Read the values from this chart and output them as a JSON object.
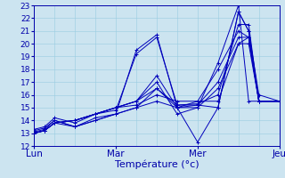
{
  "title": "Température (°c)",
  "x_ticks": [
    0,
    24,
    48,
    72
  ],
  "x_tick_labels": [
    "Lun",
    "Mar",
    "Mer",
    "Jeu"
  ],
  "ylim": [
    12,
    23
  ],
  "xlim": [
    0,
    72
  ],
  "yticks": [
    12,
    13,
    14,
    15,
    16,
    17,
    18,
    19,
    20,
    21,
    22,
    23
  ],
  "background_color": "#cce4f0",
  "grid_color": "#99cce0",
  "line_color": "#0000bb",
  "series": [
    [
      0,
      13.3,
      3,
      13.5,
      6,
      14.2,
      12,
      13.8,
      18,
      14.5,
      24,
      14.8,
      30,
      19.2,
      36,
      20.5,
      42,
      15.2,
      48,
      15.2,
      54,
      15.0,
      60,
      22.5,
      63,
      21.0,
      66,
      16.0,
      72,
      15.5
    ],
    [
      0,
      13.2,
      3,
      13.4,
      6,
      14.0,
      12,
      13.5,
      18,
      14.2,
      24,
      14.5,
      30,
      19.5,
      36,
      20.7,
      42,
      15.0,
      48,
      15.0,
      54,
      18.5,
      60,
      23.0,
      63,
      15.5,
      66,
      15.5,
      72,
      15.5
    ],
    [
      0,
      13.1,
      3,
      13.3,
      6,
      14.0,
      12,
      13.5,
      18,
      14.0,
      24,
      14.5,
      30,
      15.0,
      36,
      16.5,
      42,
      15.2,
      48,
      15.3,
      54,
      16.0,
      60,
      21.5,
      63,
      21.5,
      66,
      15.5,
      72,
      15.5
    ],
    [
      0,
      13.0,
      3,
      13.2,
      6,
      13.8,
      12,
      13.5,
      18,
      14.0,
      24,
      14.5,
      30,
      15.0,
      36,
      15.5,
      42,
      15.0,
      48,
      12.3,
      54,
      15.0,
      60,
      22.5,
      63,
      21.0,
      66,
      15.5,
      72,
      15.5
    ],
    [
      0,
      13.0,
      3,
      13.2,
      6,
      13.8,
      12,
      14.0,
      18,
      14.5,
      24,
      15.0,
      30,
      15.5,
      36,
      16.5,
      42,
      15.0,
      48,
      15.2,
      54,
      17.0,
      60,
      20.5,
      63,
      20.5,
      66,
      15.5,
      72,
      15.5
    ],
    [
      0,
      13.0,
      3,
      13.2,
      6,
      13.8,
      12,
      14.0,
      18,
      14.5,
      24,
      15.0,
      30,
      15.5,
      36,
      17.5,
      42,
      15.0,
      48,
      15.5,
      54,
      18.0,
      60,
      21.0,
      63,
      20.5,
      66,
      15.5,
      72,
      15.5
    ],
    [
      0,
      13.0,
      3,
      13.2,
      6,
      13.8,
      12,
      14.0,
      18,
      14.5,
      24,
      15.0,
      30,
      15.5,
      36,
      17.0,
      42,
      14.5,
      48,
      15.0,
      54,
      16.5,
      60,
      20.0,
      63,
      20.5,
      66,
      15.5,
      72,
      15.5
    ],
    [
      0,
      13.0,
      3,
      13.2,
      6,
      13.8,
      12,
      14.0,
      18,
      14.5,
      24,
      15.0,
      30,
      15.2,
      36,
      16.0,
      42,
      15.5,
      48,
      15.5,
      54,
      15.5,
      60,
      20.0,
      63,
      20.0,
      66,
      15.5,
      72,
      15.5
    ]
  ],
  "figsize": [
    3.2,
    2.0
  ],
  "dpi": 100
}
